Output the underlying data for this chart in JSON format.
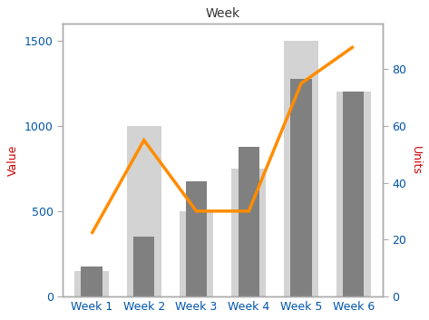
{
  "title": "Week",
  "categories": [
    "Week 1",
    "Week 2",
    "Week 3",
    "Week 4",
    "Week 5",
    "Week 6"
  ],
  "bar_light_values": [
    150,
    1000,
    500,
    750,
    1500,
    1200
  ],
  "bar_dark_values": [
    175,
    350,
    675,
    875,
    1275,
    1200
  ],
  "line_values": [
    22,
    55,
    30,
    30,
    75,
    88
  ],
  "bar_light_color": "#d3d3d3",
  "bar_dark_color": "#808080",
  "line_color": "#FF8C00",
  "ylabel_left": "Value",
  "ylabel_right": "Units",
  "ylabel_color": "#cc0000",
  "tick_label_color": "#0055aa",
  "ylim_left": [
    0,
    1600
  ],
  "ylim_right": [
    0,
    96
  ],
  "yticks_left": [
    0,
    500,
    1000,
    1500
  ],
  "yticks_right": [
    0,
    20,
    40,
    60,
    80
  ],
  "background_color": "#ffffff",
  "plot_bg_color": "#ffffff",
  "title_fontsize": 10,
  "axis_label_fontsize": 9,
  "tick_fontsize": 9,
  "bar_width": 0.55,
  "line_width": 2.5,
  "border_color": "#aaaaaa",
  "outer_border_color": "#aaaaaa"
}
